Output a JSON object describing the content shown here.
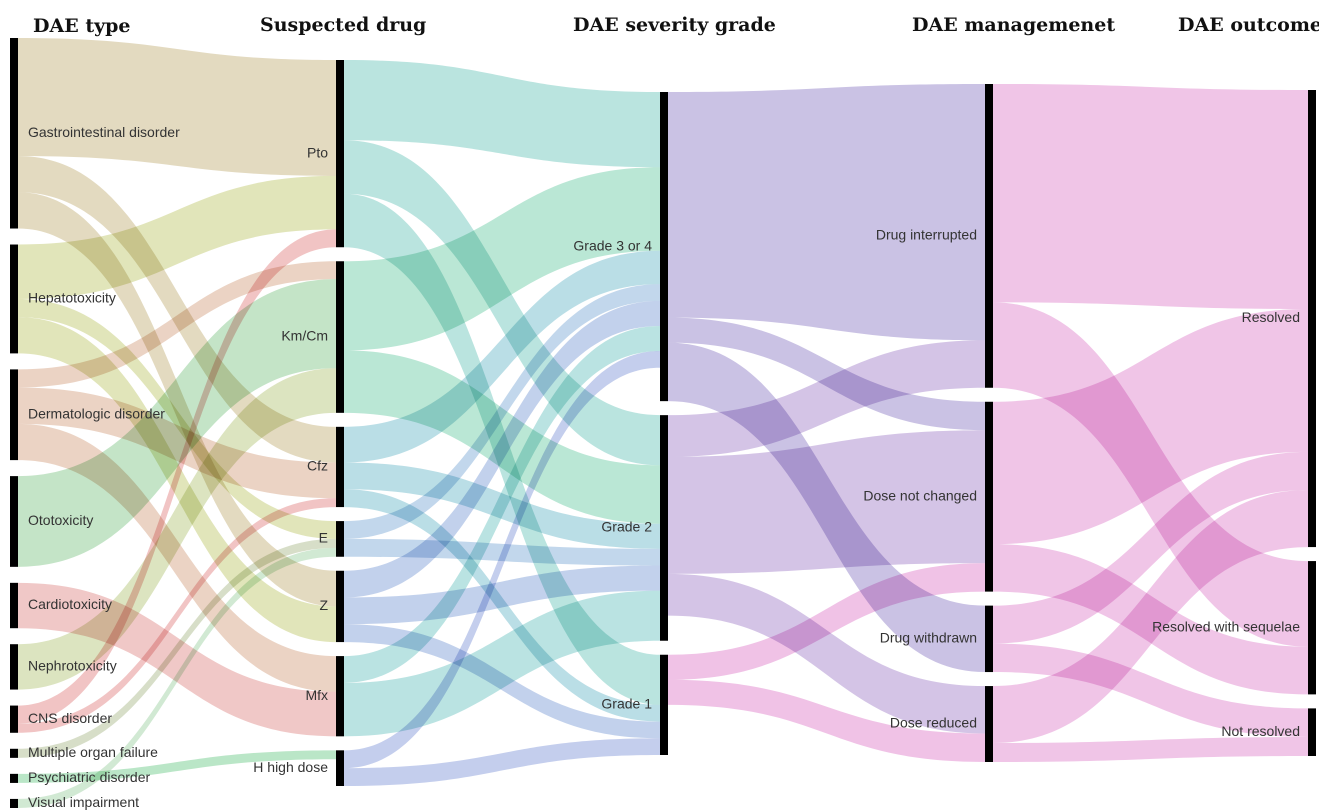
{
  "headers": {
    "dae_type": "DAE type",
    "suspected_drug": "Suspected drug",
    "severity": "DAE severity grade",
    "management": "DAE managemenet",
    "outcome": "DAE outcome"
  },
  "columns": {
    "dae_type": [
      {
        "id": "gi",
        "label": "Gastrointestinal disorder",
        "color": "#d2c49a"
      },
      {
        "id": "hep",
        "label": "Hepatotoxicity",
        "color": "#cfd590"
      },
      {
        "id": "derm",
        "label": "Dermatologic disorder",
        "color": "#deb89f"
      },
      {
        "id": "oto",
        "label": "Ototoxicity",
        "color": "#9fd4a4"
      },
      {
        "id": "cardio",
        "label": "Cardiotoxicity",
        "color": "#e6a6a4"
      },
      {
        "id": "nephro",
        "label": "Nephrotoxicity",
        "color": "#c7d49a"
      },
      {
        "id": "cns",
        "label": "CNS disorder",
        "color": "#e8a0a0"
      },
      {
        "id": "mof",
        "label": "Multiple organ failure",
        "color": "#bfc9a6"
      },
      {
        "id": "psy",
        "label": "Psychiatric disorder",
        "color": "#90d6a4"
      },
      {
        "id": "vis",
        "label": "Visual impairment",
        "color": "#b5dcb8"
      }
    ],
    "suspected_drug": [
      {
        "id": "pto",
        "label": "Pto",
        "color": "#8fd3cc"
      },
      {
        "id": "km",
        "label": "Km/Cm",
        "color": "#8fd9bb"
      },
      {
        "id": "cfz",
        "label": "Cfz",
        "color": "#8fcad6"
      },
      {
        "id": "e",
        "label": "E",
        "color": "#9dbfe0"
      },
      {
        "id": "z",
        "label": "Z",
        "color": "#9db4e0"
      },
      {
        "id": "mfx",
        "label": "Mfx",
        "color": "#8fd2d0"
      },
      {
        "id": "h",
        "label": "H high dose",
        "color": "#9fb0e2"
      }
    ],
    "severity": [
      {
        "id": "g34",
        "label": "Grade 3 or 4",
        "color": "#a99cd3"
      },
      {
        "id": "g2",
        "label": "Grade 2",
        "color": "#b9a0d6"
      },
      {
        "id": "g1",
        "label": "Grade 1",
        "color": "#e79cd6"
      }
    ],
    "management": [
      {
        "id": "int",
        "label": "Drug interrupted",
        "color": "#e7a2d9"
      },
      {
        "id": "dnc",
        "label": "Dose not changed",
        "color": "#e7a2d9"
      },
      {
        "id": "wd",
        "label": "Drug withdrawn",
        "color": "#e7a2d9"
      },
      {
        "id": "dr",
        "label": "Dose reduced",
        "color": "#e7a2d9"
      }
    ],
    "outcome": [
      {
        "id": "res",
        "label": "Resolved"
      },
      {
        "id": "rws",
        "label": "Resolved with sequelae"
      },
      {
        "id": "nr",
        "label": "Not resolved"
      }
    ]
  },
  "flows": [
    {
      "source": "gi",
      "target": "pto",
      "value": 13
    },
    {
      "source": "gi",
      "target": "cfz",
      "value": 4
    },
    {
      "source": "gi",
      "target": "z",
      "value": 4
    },
    {
      "source": "hep",
      "target": "pto",
      "value": 6
    },
    {
      "source": "hep",
      "target": "z",
      "value": 4
    },
    {
      "source": "hep",
      "target": "e",
      "value": 2
    },
    {
      "source": "derm",
      "target": "km",
      "value": 2
    },
    {
      "source": "derm",
      "target": "cfz",
      "value": 4
    },
    {
      "source": "derm",
      "target": "mfx",
      "value": 4
    },
    {
      "source": "oto",
      "target": "km",
      "value": 10
    },
    {
      "source": "cardio",
      "target": "mfx",
      "value": 5
    },
    {
      "source": "nephro",
      "target": "km",
      "value": 5
    },
    {
      "source": "cns",
      "target": "pto",
      "value": 2
    },
    {
      "source": "cns",
      "target": "cfz",
      "value": 1
    },
    {
      "source": "mof",
      "target": "e",
      "value": 1
    },
    {
      "source": "psy",
      "target": "h",
      "value": 1
    },
    {
      "source": "vis",
      "target": "e",
      "value": 1
    },
    {
      "source": "pto",
      "target": "g34",
      "value": 9
    },
    {
      "source": "pto",
      "target": "g2",
      "value": 6
    },
    {
      "source": "pto",
      "target": "g1",
      "value": 6
    },
    {
      "source": "km",
      "target": "g34",
      "value": 10
    },
    {
      "source": "km",
      "target": "g2",
      "value": 7
    },
    {
      "source": "cfz",
      "target": "g34",
      "value": 4
    },
    {
      "source": "cfz",
      "target": "g2",
      "value": 3
    },
    {
      "source": "cfz",
      "target": "g1",
      "value": 2
    },
    {
      "source": "e",
      "target": "g34",
      "value": 2
    },
    {
      "source": "e",
      "target": "g2",
      "value": 2
    },
    {
      "source": "z",
      "target": "g34",
      "value": 3
    },
    {
      "source": "z",
      "target": "g2",
      "value": 3
    },
    {
      "source": "z",
      "target": "g1",
      "value": 2
    },
    {
      "source": "mfx",
      "target": "g34",
      "value": 3
    },
    {
      "source": "mfx",
      "target": "g2",
      "value": 6
    },
    {
      "source": "h",
      "target": "g34",
      "value": 2
    },
    {
      "source": "h",
      "target": "g1",
      "value": 2
    },
    {
      "source": "g34",
      "target": "int",
      "value": 27
    },
    {
      "source": "g34",
      "target": "dnc",
      "value": 3
    },
    {
      "source": "g34",
      "target": "wd",
      "value": 7
    },
    {
      "source": "g2",
      "target": "int",
      "value": 5
    },
    {
      "source": "g2",
      "target": "dnc",
      "value": 14
    },
    {
      "source": "g2",
      "target": "dr",
      "value": 5
    },
    {
      "source": "g1",
      "target": "dnc",
      "value": 3
    },
    {
      "source": "g1",
      "target": "dr",
      "value": 3
    },
    {
      "source": "int",
      "target": "res",
      "value": 23
    },
    {
      "source": "int",
      "target": "rws",
      "value": 9
    },
    {
      "source": "dnc",
      "target": "res",
      "value": 15
    },
    {
      "source": "dnc",
      "target": "rws",
      "value": 5
    },
    {
      "source": "wd",
      "target": "res",
      "value": 4
    },
    {
      "source": "wd",
      "target": "nr",
      "value": 3
    },
    {
      "source": "dr",
      "target": "res",
      "value": 6
    },
    {
      "source": "dr",
      "target": "nr",
      "value": 2
    }
  ]
}
